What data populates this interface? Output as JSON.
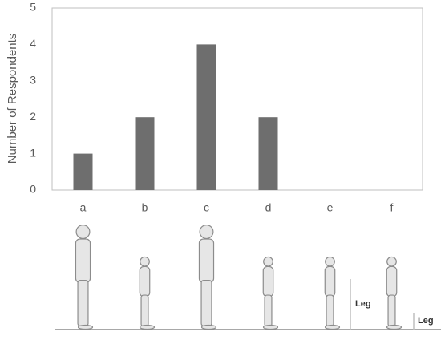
{
  "chart_data": {
    "type": "bar",
    "y_label": "Number of Respondents",
    "categories": [
      "a",
      "b",
      "c",
      "d",
      "e",
      "f"
    ],
    "values": [
      1,
      2,
      4,
      2,
      0,
      0
    ],
    "color": "#6e6e6e",
    "ylim": [
      0,
      5
    ],
    "yticks": [
      0,
      1,
      2,
      3,
      4,
      5
    ],
    "grid": false,
    "annotations": [
      "Leg",
      "Leg"
    ]
  }
}
